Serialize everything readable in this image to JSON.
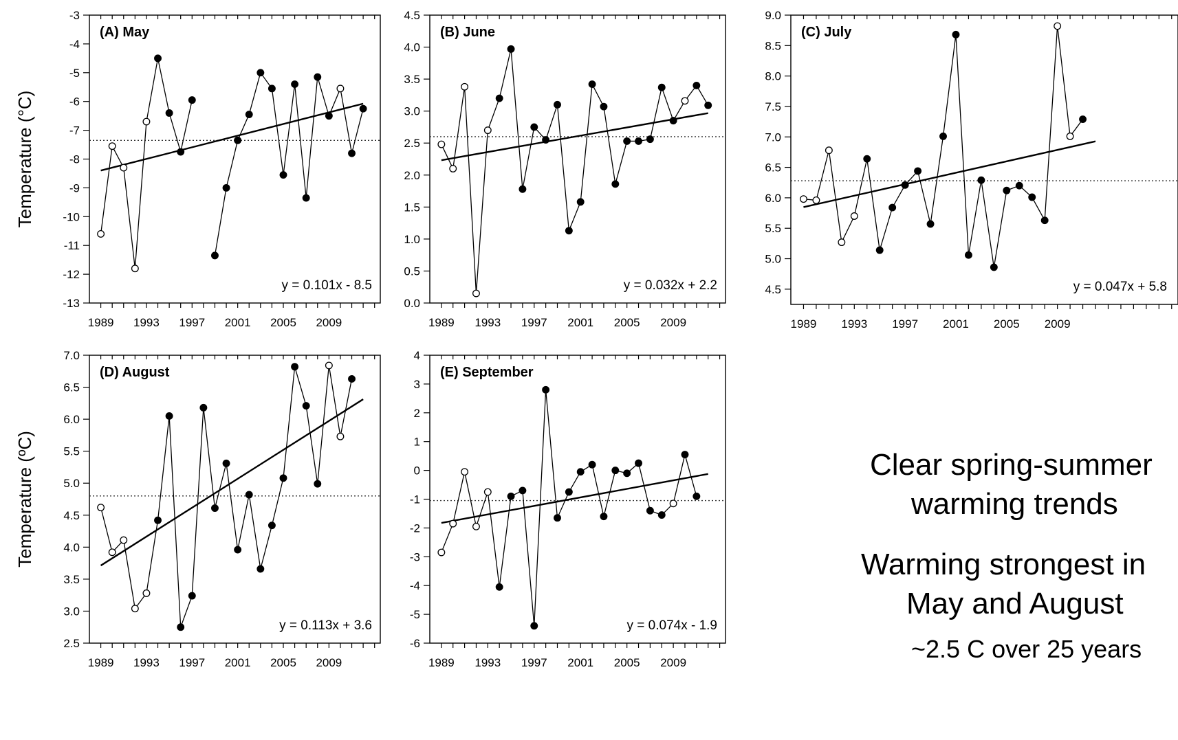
{
  "ylabel_left": "Temperature (°C)",
  "ylabel_left_d": "Temperature (ºC)",
  "notes": {
    "line1": "Clear spring-summer",
    "line2": "warming trends",
    "line3": "Warming strongest in",
    "line4": "May and August",
    "line5": "~2.5 C over 25 years"
  },
  "chart_data": [
    {
      "type": "line",
      "title": "(A) May",
      "equation": "y = 0.101x - 8.5",
      "ylabel": "Temperature (°C)",
      "ylim": [
        -13,
        -3
      ],
      "yticks": [
        "-3",
        "-4",
        "-5",
        "-6",
        "-7",
        "-8",
        "-9",
        "-10",
        "-11",
        "-12",
        "-13"
      ],
      "xticks": [
        "1989",
        "1993",
        "1997",
        "2001",
        "2005",
        "2009"
      ],
      "mean": -7.35,
      "trend": {
        "slope": 0.101,
        "intercept": -8.5
      },
      "points": [
        {
          "year": 1989,
          "value": -10.6,
          "open": true
        },
        {
          "year": 1990,
          "value": -7.55,
          "open": true
        },
        {
          "year": 1991,
          "value": -8.3,
          "open": true
        },
        {
          "year": 1992,
          "value": -11.8,
          "open": true
        },
        {
          "year": 1993,
          "value": -6.7,
          "open": true
        },
        {
          "year": 1994,
          "value": -4.5,
          "open": false
        },
        {
          "year": 1995,
          "value": -6.4,
          "open": false
        },
        {
          "year": 1996,
          "value": -7.75,
          "open": false
        },
        {
          "year": 1997,
          "value": -5.95,
          "open": false
        },
        {
          "year": 1999,
          "value": -11.35,
          "open": false
        },
        {
          "year": 2000,
          "value": -9.0,
          "open": false
        },
        {
          "year": 2001,
          "value": -7.35,
          "open": false
        },
        {
          "year": 2002,
          "value": -6.45,
          "open": false
        },
        {
          "year": 2003,
          "value": -5.0,
          "open": false
        },
        {
          "year": 2004,
          "value": -5.55,
          "open": false
        },
        {
          "year": 2005,
          "value": -8.55,
          "open": false
        },
        {
          "year": 2006,
          "value": -5.4,
          "open": false
        },
        {
          "year": 2007,
          "value": -9.35,
          "open": false
        },
        {
          "year": 2008,
          "value": -5.15,
          "open": false
        },
        {
          "year": 2009,
          "value": -6.5,
          "open": false
        },
        {
          "year": 2010,
          "value": -5.55,
          "open": true
        },
        {
          "year": 2011,
          "value": -7.8,
          "open": false
        },
        {
          "year": 2012,
          "value": -6.25,
          "open": false
        }
      ]
    },
    {
      "type": "line",
      "title": "(B) June",
      "equation": "y = 0.032x + 2.2",
      "ylabel": "",
      "ylim": [
        0,
        4.5
      ],
      "yticks": [
        "0.0",
        "0.5",
        "1.0",
        "1.5",
        "2.0",
        "2.5",
        "3.0",
        "3.5",
        "4.0",
        "4.5"
      ],
      "xticks": [
        "1989",
        "1993",
        "1997",
        "2001",
        "2005",
        "2009"
      ],
      "mean": 2.6,
      "trend": {
        "slope": 0.032,
        "intercept": 2.2
      },
      "points": [
        {
          "year": 1989,
          "value": 2.48,
          "open": true
        },
        {
          "year": 1990,
          "value": 2.1,
          "open": true
        },
        {
          "year": 1991,
          "value": 3.38,
          "open": true
        },
        {
          "year": 1992,
          "value": 0.15,
          "open": true
        },
        {
          "year": 1993,
          "value": 2.7,
          "open": true
        },
        {
          "year": 1994,
          "value": 3.2,
          "open": false
        },
        {
          "year": 1995,
          "value": 3.97,
          "open": false
        },
        {
          "year": 1996,
          "value": 1.78,
          "open": false
        },
        {
          "year": 1997,
          "value": 2.75,
          "open": false
        },
        {
          "year": 1998,
          "value": 2.55,
          "open": false
        },
        {
          "year": 1999,
          "value": 3.1,
          "open": false
        },
        {
          "year": 2000,
          "value": 1.13,
          "open": false
        },
        {
          "year": 2001,
          "value": 1.58,
          "open": false
        },
        {
          "year": 2002,
          "value": 3.42,
          "open": false
        },
        {
          "year": 2003,
          "value": 3.07,
          "open": false
        },
        {
          "year": 2004,
          "value": 1.86,
          "open": false
        },
        {
          "year": 2005,
          "value": 2.53,
          "open": false
        },
        {
          "year": 2006,
          "value": 2.53,
          "open": false
        },
        {
          "year": 2007,
          "value": 2.56,
          "open": false
        },
        {
          "year": 2008,
          "value": 3.37,
          "open": false
        },
        {
          "year": 2009,
          "value": 2.85,
          "open": false
        },
        {
          "year": 2010,
          "value": 3.16,
          "open": true
        },
        {
          "year": 2011,
          "value": 3.4,
          "open": false
        },
        {
          "year": 2012,
          "value": 3.09,
          "open": false
        }
      ]
    },
    {
      "type": "line",
      "title": "(C) July",
      "equation": "y = 0.047x + 5.8",
      "ylabel": "",
      "ylim": [
        4.25,
        9.0
      ],
      "yticks": [
        "4.5",
        "5.0",
        "5.5",
        "6.0",
        "6.5",
        "7.0",
        "7.5",
        "8.0",
        "8.5",
        "9.0"
      ],
      "xticks": [
        "1989",
        "1993",
        "1997",
        "2001",
        "2005",
        "2009"
      ],
      "mean": 6.28,
      "trend": {
        "slope": 0.047,
        "intercept": 5.8
      },
      "points": [
        {
          "year": 1989,
          "value": 5.98,
          "open": true
        },
        {
          "year": 1990,
          "value": 5.96,
          "open": true
        },
        {
          "year": 1991,
          "value": 6.78,
          "open": true
        },
        {
          "year": 1992,
          "value": 5.27,
          "open": true
        },
        {
          "year": 1993,
          "value": 5.7,
          "open": true
        },
        {
          "year": 1994,
          "value": 6.64,
          "open": false
        },
        {
          "year": 1995,
          "value": 5.14,
          "open": false
        },
        {
          "year": 1996,
          "value": 5.84,
          "open": false
        },
        {
          "year": 1997,
          "value": 6.21,
          "open": false
        },
        {
          "year": 1998,
          "value": 6.44,
          "open": false
        },
        {
          "year": 1999,
          "value": 5.57,
          "open": false
        },
        {
          "year": 2000,
          "value": 7.01,
          "open": false
        },
        {
          "year": 2001,
          "value": 8.68,
          "open": false
        },
        {
          "year": 2002,
          "value": 5.06,
          "open": false
        },
        {
          "year": 2003,
          "value": 6.29,
          "open": false
        },
        {
          "year": 2004,
          "value": 4.86,
          "open": false
        },
        {
          "year": 2005,
          "value": 6.12,
          "open": false
        },
        {
          "year": 2006,
          "value": 6.2,
          "open": false
        },
        {
          "year": 2007,
          "value": 6.01,
          "open": false
        },
        {
          "year": 2008,
          "value": 5.63,
          "open": false
        },
        {
          "year": 2009,
          "value": 8.82,
          "open": true
        },
        {
          "year": 2010,
          "value": 7.01,
          "open": true
        },
        {
          "year": 2011,
          "value": 7.29,
          "open": false
        }
      ]
    },
    {
      "type": "line",
      "title": "(D) August",
      "equation": "y = 0.113x + 3.6",
      "ylabel": "Temperature (ºC)",
      "ylim": [
        2.5,
        7.0
      ],
      "yticks": [
        "2.5",
        "3.0",
        "3.5",
        "4.0",
        "4.5",
        "5.0",
        "5.5",
        "6.0",
        "6.5",
        "7.0"
      ],
      "xticks": [
        "1989",
        "1993",
        "1997",
        "2001",
        "2005",
        "2009"
      ],
      "mean": 4.8,
      "trend": {
        "slope": 0.113,
        "intercept": 3.6
      },
      "points": [
        {
          "year": 1989,
          "value": 4.62,
          "open": true
        },
        {
          "year": 1990,
          "value": 3.92,
          "open": true
        },
        {
          "year": 1991,
          "value": 4.11,
          "open": true
        },
        {
          "year": 1992,
          "value": 3.04,
          "open": true
        },
        {
          "year": 1993,
          "value": 3.28,
          "open": true
        },
        {
          "year": 1994,
          "value": 4.42,
          "open": false
        },
        {
          "year": 1995,
          "value": 6.05,
          "open": false
        },
        {
          "year": 1996,
          "value": 2.75,
          "open": false
        },
        {
          "year": 1997,
          "value": 3.24,
          "open": false
        },
        {
          "year": 1998,
          "value": 6.18,
          "open": false
        },
        {
          "year": 1999,
          "value": 4.61,
          "open": false
        },
        {
          "year": 2000,
          "value": 5.31,
          "open": false
        },
        {
          "year": 2001,
          "value": 3.96,
          "open": false
        },
        {
          "year": 2002,
          "value": 4.82,
          "open": false
        },
        {
          "year": 2003,
          "value": 3.66,
          "open": false
        },
        {
          "year": 2004,
          "value": 4.34,
          "open": false
        },
        {
          "year": 2005,
          "value": 5.08,
          "open": false
        },
        {
          "year": 2006,
          "value": 6.82,
          "open": false
        },
        {
          "year": 2007,
          "value": 6.21,
          "open": false
        },
        {
          "year": 2008,
          "value": 4.99,
          "open": false
        },
        {
          "year": 2009,
          "value": 6.84,
          "open": true
        },
        {
          "year": 2010,
          "value": 5.73,
          "open": true
        },
        {
          "year": 2011,
          "value": 6.63,
          "open": false
        }
      ]
    },
    {
      "type": "line",
      "title": "(E) September",
      "equation": "y = 0.074x - 1.9",
      "ylabel": "",
      "ylim": [
        -6,
        4
      ],
      "yticks": [
        "4",
        "3",
        "2",
        "1",
        "0",
        "-1",
        "-2",
        "-3",
        "-4",
        "-5",
        "-6"
      ],
      "xticks": [
        "1989",
        "1993",
        "1997",
        "2001",
        "2005",
        "2009"
      ],
      "mean": -1.05,
      "trend": {
        "slope": 0.074,
        "intercept": -1.9
      },
      "points": [
        {
          "year": 1989,
          "value": -2.85,
          "open": true
        },
        {
          "year": 1990,
          "value": -1.85,
          "open": true
        },
        {
          "year": 1991,
          "value": -0.05,
          "open": true
        },
        {
          "year": 1992,
          "value": -1.95,
          "open": true
        },
        {
          "year": 1993,
          "value": -0.75,
          "open": true
        },
        {
          "year": 1994,
          "value": -4.05,
          "open": false
        },
        {
          "year": 1995,
          "value": -0.9,
          "open": false
        },
        {
          "year": 1996,
          "value": -0.7,
          "open": false
        },
        {
          "year": 1997,
          "value": -5.4,
          "open": false
        },
        {
          "year": 1998,
          "value": 2.8,
          "open": false
        },
        {
          "year": 1999,
          "value": -1.65,
          "open": false
        },
        {
          "year": 2000,
          "value": -0.75,
          "open": false
        },
        {
          "year": 2001,
          "value": -0.05,
          "open": false
        },
        {
          "year": 2002,
          "value": 0.2,
          "open": false
        },
        {
          "year": 2003,
          "value": -1.6,
          "open": false
        },
        {
          "year": 2004,
          "value": 0.0,
          "open": false
        },
        {
          "year": 2005,
          "value": -0.1,
          "open": false
        },
        {
          "year": 2006,
          "value": 0.25,
          "open": false
        },
        {
          "year": 2007,
          "value": -1.4,
          "open": false
        },
        {
          "year": 2008,
          "value": -1.55,
          "open": false
        },
        {
          "year": 2009,
          "value": -1.15,
          "open": true
        },
        {
          "year": 2010,
          "value": 0.55,
          "open": false
        },
        {
          "year": 2011,
          "value": -0.9,
          "open": false
        }
      ]
    }
  ]
}
